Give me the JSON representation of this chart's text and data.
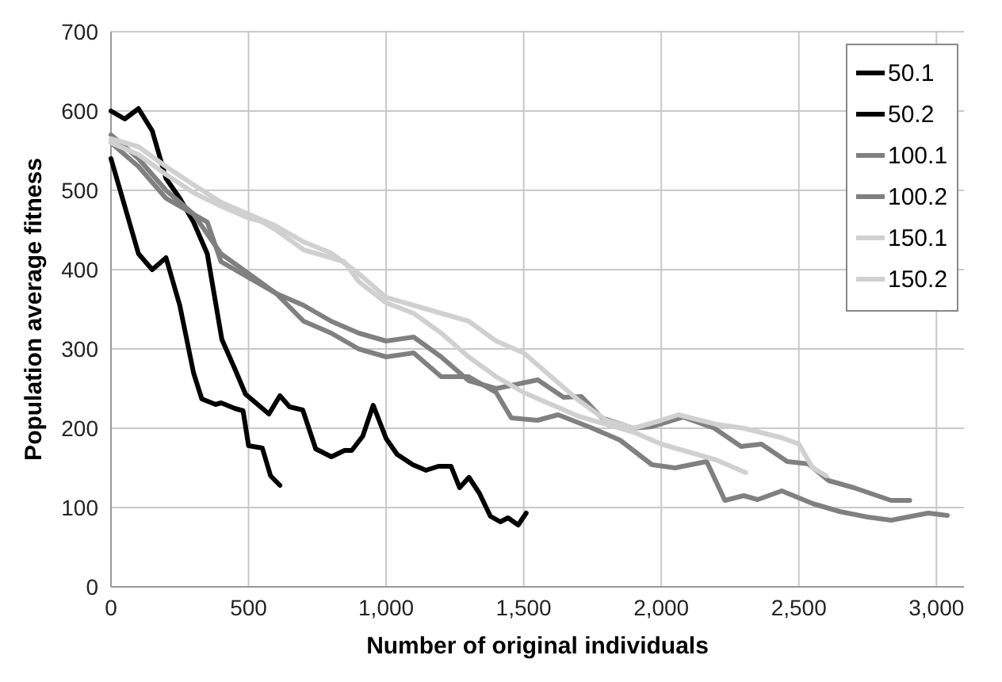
{
  "chart_data": {
    "type": "line",
    "xlabel": "Number of original individuals",
    "ylabel": "Population average fitness",
    "xlim": [
      0,
      3100
    ],
    "ylim": [
      0,
      700
    ],
    "xticks": [
      0,
      {
        "value": 500,
        "label": "500"
      },
      {
        "value": 1000,
        "label": "1,000"
      },
      {
        "value": 1500,
        "label": "1,500"
      },
      {
        "value": 2000,
        "label": "2,000"
      },
      {
        "value": 2500,
        "label": "2,500"
      },
      {
        "value": 3000,
        "label": "3,000"
      }
    ],
    "yticks": [
      0,
      100,
      200,
      300,
      400,
      500,
      600,
      700
    ],
    "grid": true,
    "legend": "right",
    "line_style": "solid",
    "series": [
      {
        "name": "50.1",
        "color": "#000000",
        "x": [
          0,
          50,
          100,
          150,
          200,
          250,
          300,
          330,
          380,
          400,
          450,
          480,
          500,
          550,
          580,
          614
        ],
        "values": [
          540,
          480,
          420,
          400,
          415,
          355,
          270,
          237,
          230,
          232,
          225,
          222,
          178,
          175,
          140,
          128
        ]
      },
      {
        "name": "50.2",
        "color": "#000000",
        "x": [
          0,
          50,
          100,
          150,
          200,
          250,
          300,
          350,
          403,
          450,
          489,
          574,
          614,
          649,
          697,
          744,
          801,
          849,
          875,
          915,
          953,
          1000,
          1040,
          1097,
          1145,
          1190,
          1236,
          1267,
          1301,
          1339,
          1379,
          1415,
          1443,
          1480,
          1509
        ],
        "values": [
          600,
          590,
          603,
          575,
          515,
          490,
          460,
          420,
          312,
          275,
          243,
          218,
          241,
          227,
          223,
          174,
          164,
          172,
          172,
          190,
          229,
          187,
          167,
          154,
          147,
          152,
          152,
          125,
          138,
          118,
          89,
          82,
          87,
          78,
          93
        ]
      },
      {
        "name": "100.1",
        "color": "#808080",
        "x": [
          0,
          100,
          200,
          300,
          350,
          400,
          500,
          600,
          700,
          800,
          900,
          1000,
          1100,
          1200,
          1300,
          1400,
          1551,
          1645,
          1710,
          1784,
          1900,
          1966,
          2080,
          2193,
          2290,
          2364,
          2458,
          2534,
          2608,
          2700,
          2835,
          2903
        ],
        "values": [
          570,
          540,
          500,
          470,
          460,
          410,
          390,
          370,
          355,
          335,
          320,
          310,
          315,
          290,
          260,
          250,
          261,
          239,
          240,
          213,
          200,
          202,
          214,
          200,
          177,
          180,
          158,
          155,
          134,
          125,
          109,
          109
        ]
      },
      {
        "name": "100.2",
        "color": "#808080",
        "x": [
          0,
          100,
          200,
          300,
          400,
          500,
          600,
          700,
          800,
          900,
          1000,
          1100,
          1200,
          1300,
          1400,
          1455,
          1550,
          1625,
          1750,
          1850,
          1966,
          2050,
          2165,
          2231,
          2300,
          2350,
          2438,
          2550,
          2648,
          2750,
          2835,
          2970,
          3040
        ],
        "values": [
          560,
          530,
          490,
          470,
          420,
          395,
          370,
          335,
          320,
          300,
          290,
          295,
          265,
          265,
          245,
          213,
          210,
          217,
          200,
          185,
          154,
          150,
          158,
          109,
          115,
          110,
          121,
          105,
          95,
          88,
          84,
          93,
          90
        ]
      },
      {
        "name": "150.1",
        "color": "#d0d0d0",
        "x": [
          0,
          100,
          200,
          300,
          400,
          500,
          600,
          700,
          800,
          900,
          1000,
          1100,
          1200,
          1300,
          1400,
          1500,
          1600,
          1700,
          1800,
          1900,
          2000,
          2062,
          2200,
          2300,
          2438,
          2500,
          2550,
          2600
        ],
        "values": [
          565,
          555,
          530,
          507,
          485,
          470,
          455,
          435,
          421,
          395,
          365,
          355,
          345,
          335,
          310,
          295,
          265,
          235,
          210,
          200,
          210,
          217,
          205,
          200,
          188,
          180,
          150,
          140
        ]
      },
      {
        "name": "150.2",
        "color": "#d0d0d0",
        "x": [
          0,
          100,
          200,
          300,
          400,
          500,
          545,
          600,
          700,
          848,
          900,
          1000,
          1100,
          1200,
          1300,
          1400,
          1500,
          1600,
          1700,
          1800,
          1900,
          2000,
          2100,
          2200,
          2307
        ],
        "values": [
          560,
          545,
          520,
          497,
          480,
          465,
          461,
          450,
          425,
          410,
          385,
          358,
          345,
          320,
          290,
          265,
          245,
          230,
          215,
          205,
          195,
          180,
          170,
          160,
          144
        ]
      }
    ]
  }
}
